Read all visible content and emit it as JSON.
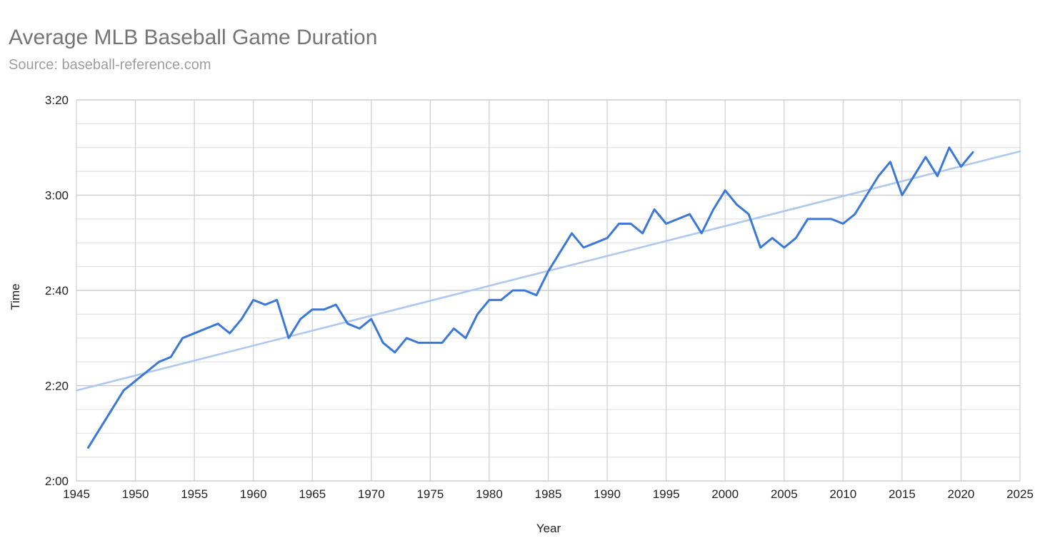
{
  "chart_data": {
    "type": "line",
    "title": "Average MLB Baseball Game Duration",
    "subtitle": "Source: baseball-reference.com",
    "xlabel": "Year",
    "ylabel": "Time",
    "xlim": [
      1945,
      2025
    ],
    "ylim_minutes": [
      120,
      200
    ],
    "x_ticks": [
      "1945",
      "1950",
      "1955",
      "1960",
      "1965",
      "1970",
      "1975",
      "1980",
      "1985",
      "1990",
      "1995",
      "2000",
      "2005",
      "2010",
      "2015",
      "2020",
      "2025"
    ],
    "y_ticks": [
      "2:00",
      "2:20",
      "2:40",
      "3:00",
      "3:20"
    ],
    "grid": true,
    "legend": "none",
    "series": [
      {
        "color": "#3b78d8",
        "x": [
          1946,
          1949,
          1952,
          1953,
          1954,
          1957,
          1958,
          1959,
          1960,
          1961,
          1962,
          1963,
          1964,
          1965,
          1966,
          1967,
          1968,
          1969,
          1970,
          1971,
          1972,
          1973,
          1974,
          1975,
          1976,
          1977,
          1978,
          1979,
          1980,
          1981,
          1982,
          1983,
          1984,
          1985,
          1986,
          1987,
          1988,
          1989,
          1990,
          1991,
          1992,
          1993,
          1994,
          1995,
          1996,
          1997,
          1998,
          1999,
          2000,
          2001,
          2002,
          2003,
          2004,
          2005,
          2006,
          2007,
          2008,
          2009,
          2010,
          2011,
          2012,
          2013,
          2014,
          2015,
          2016,
          2017,
          2018,
          2019,
          2020,
          2021
        ],
        "y_minutes": [
          127,
          139,
          145,
          146,
          150,
          153,
          151,
          154,
          158,
          157,
          158,
          150,
          154,
          156,
          156,
          157,
          153,
          152,
          154,
          149,
          147,
          150,
          149,
          149,
          149,
          152,
          150,
          155,
          158,
          158,
          160,
          160,
          159,
          164,
          168,
          172,
          169,
          170,
          171,
          174,
          174,
          172,
          177,
          174,
          175,
          176,
          172,
          177,
          181,
          178,
          176,
          169,
          171,
          169,
          171,
          175,
          175,
          175,
          174,
          176,
          180,
          184,
          187,
          180,
          184,
          188,
          184,
          190,
          186,
          189
        ],
        "y": [
          "2:07",
          "2:19",
          "2:25",
          "2:26",
          "2:30",
          "2:33",
          "2:31",
          "2:34",
          "2:38",
          "2:37",
          "2:38",
          "2:30",
          "2:34",
          "2:36",
          "2:36",
          "2:37",
          "2:33",
          "2:32",
          "2:34",
          "2:29",
          "2:27",
          "2:30",
          "2:29",
          "2:29",
          "2:29",
          "2:32",
          "2:30",
          "2:35",
          "2:38",
          "2:38",
          "2:40",
          "2:40",
          "2:39",
          "2:44",
          "2:48",
          "2:52",
          "2:49",
          "2:50",
          "2:51",
          "2:54",
          "2:54",
          "2:52",
          "2:57",
          "2:54",
          "2:55",
          "2:56",
          "2:52",
          "2:57",
          "3:01",
          "2:58",
          "2:56",
          "2:49",
          "2:51",
          "2:49",
          "2:51",
          "2:55",
          "2:55",
          "2:55",
          "2:54",
          "2:56",
          "3:00",
          "3:04",
          "3:07",
          "3:00",
          "3:04",
          "3:08",
          "3:04",
          "3:10",
          "3:06",
          "3:09"
        ]
      },
      {
        "color": "#aec8f0",
        "x": [
          1945,
          2025
        ],
        "y_minutes": [
          139,
          189.2
        ]
      }
    ]
  }
}
